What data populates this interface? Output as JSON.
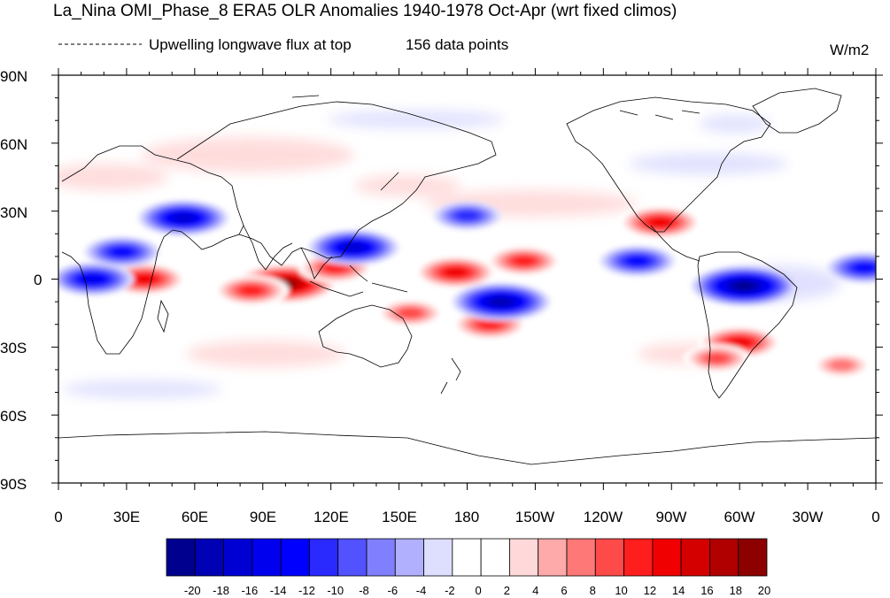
{
  "title": "La_Nina OMI_Phase_8 ERA5 OLR Anomalies 1940-1978 Oct-Apr (wrt fixed climos)",
  "subtitle_left": "Upwelling longwave flux at top",
  "subtitle_points": "156 data points",
  "units": "W/m2",
  "lat_labels": [
    "90N",
    "60N",
    "30N",
    "0",
    "30S",
    "60S",
    "90S"
  ],
  "lon_labels": [
    "0",
    "30E",
    "60E",
    "90E",
    "120E",
    "150E",
    "180",
    "150W",
    "120W",
    "90W",
    "60W",
    "30W",
    "0"
  ],
  "chart_data": {
    "type": "heatmap",
    "projection": "cylindrical equidistant",
    "lon_range": [
      0,
      360
    ],
    "lat_range": [
      -90,
      90
    ],
    "colorbar": {
      "levels": [
        -20,
        -18,
        -16,
        -14,
        -12,
        -10,
        -8,
        -6,
        -4,
        -2,
        0,
        2,
        4,
        6,
        8,
        10,
        12,
        14,
        16,
        18,
        20
      ],
      "tick_labels": [
        "-20",
        "-18",
        "-16",
        "-14",
        "-12",
        "-10",
        "-8",
        "-6",
        "-4",
        "-2",
        "0",
        "2",
        "4",
        "6",
        "8",
        "10",
        "12",
        "14",
        "16",
        "18",
        "20"
      ],
      "colors": [
        "#00008f",
        "#0000b4",
        "#0000d2",
        "#0000ee",
        "#0000ff",
        "#2a2aff",
        "#5252ff",
        "#8080ff",
        "#b0b0ff",
        "#dedeff",
        "#ffffff",
        "#ffffff",
        "#ffd9d9",
        "#ffaaaa",
        "#ff7878",
        "#ff4a4a",
        "#ff1e1e",
        "#f00000",
        "#d40000",
        "#b00000",
        "#8c0000"
      ]
    },
    "anomaly_features": [
      {
        "lon": 100,
        "lat": -2,
        "value": 20
      },
      {
        "lon": 122,
        "lat": 5,
        "value": 12
      },
      {
        "lon": 85,
        "lat": -5,
        "value": 12
      },
      {
        "lon": 38,
        "lat": 0,
        "value": 14
      },
      {
        "lon": 28,
        "lat": 12,
        "value": -12
      },
      {
        "lon": 175,
        "lat": 3,
        "value": 14
      },
      {
        "lon": 205,
        "lat": 8,
        "value": 12
      },
      {
        "lon": 190,
        "lat": -20,
        "value": 12
      },
      {
        "lon": 155,
        "lat": -15,
        "value": 10
      },
      {
        "lon": 195,
        "lat": -10,
        "value": -18
      },
      {
        "lon": 130,
        "lat": 14,
        "value": -16
      },
      {
        "lon": 55,
        "lat": 27,
        "value": -16
      },
      {
        "lon": 15,
        "lat": 0,
        "value": -14
      },
      {
        "lon": 302,
        "lat": -3,
        "value": -20
      },
      {
        "lon": 255,
        "lat": 8,
        "value": -12
      },
      {
        "lon": 355,
        "lat": 5,
        "value": -12
      },
      {
        "lon": 265,
        "lat": 25,
        "value": 14
      },
      {
        "lon": 300,
        "lat": -28,
        "value": 14
      },
      {
        "lon": 290,
        "lat": -35,
        "value": 10
      },
      {
        "lon": 180,
        "lat": 28,
        "value": -10
      },
      {
        "lon": 345,
        "lat": -38,
        "value": 8
      }
    ]
  }
}
